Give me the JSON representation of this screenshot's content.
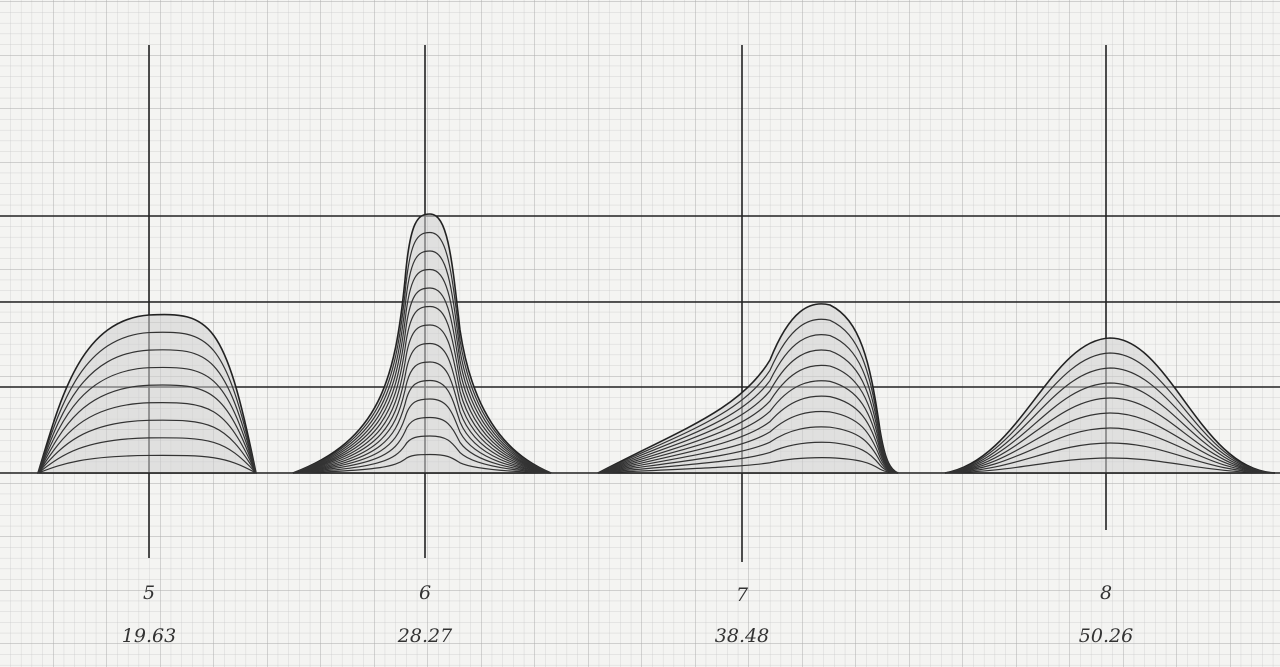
{
  "figures": [
    {
      "label": "5",
      "value": "19.63"
    },
    {
      "label": "6",
      "value": "28.27"
    },
    {
      "label": "7",
      "value": "38.48"
    },
    {
      "label": "8",
      "value": "50.26"
    }
  ]
}
